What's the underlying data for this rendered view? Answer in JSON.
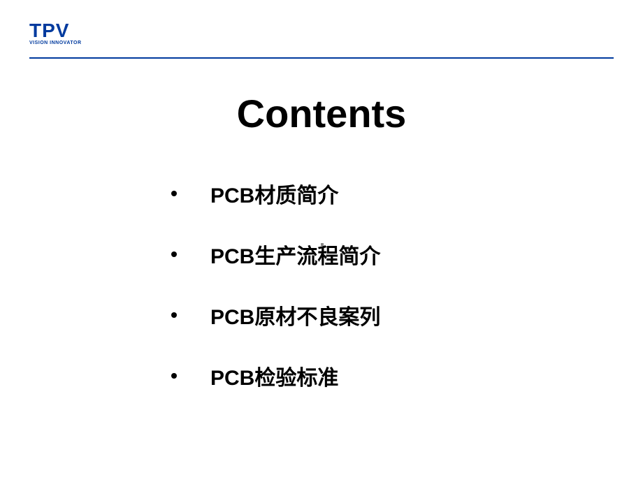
{
  "logo": {
    "text": "TPV",
    "tagline": "VISION INNOVATOR",
    "color": "#003a9e"
  },
  "title": "Contents",
  "bullets": [
    {
      "text": "PCB材质简介"
    },
    {
      "text": "PCB生产流程简介"
    },
    {
      "text": "PCB原材不良案列"
    },
    {
      "text": "PCB检验标准"
    }
  ],
  "styling": {
    "background": "#ffffff",
    "title_fontsize": 56,
    "title_color": "#000000",
    "bullet_fontsize": 30,
    "bullet_color": "#000000",
    "line_color": "#003a9e"
  }
}
